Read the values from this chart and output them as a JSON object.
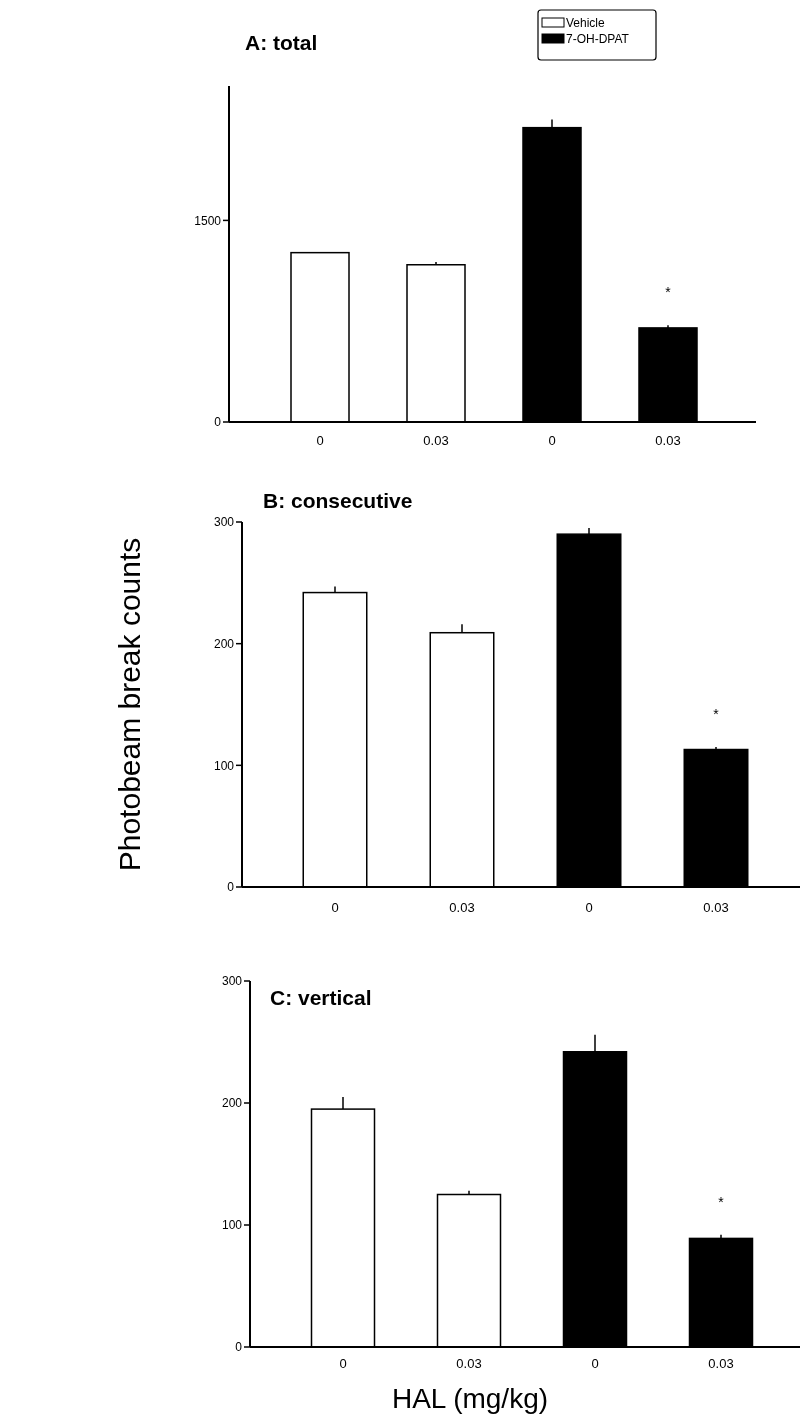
{
  "chart_data": [
    {
      "type": "bar",
      "title": "A: total",
      "categories": [
        "0",
        "0.03",
        "0",
        "0.03"
      ],
      "series": [
        {
          "name": "Vehicle",
          "color": "#ffffff",
          "values": [
            1260,
            1170,
            null,
            null
          ],
          "errors": [
            null,
            20,
            null,
            null
          ]
        },
        {
          "name": "7-OH-DPAT",
          "color": "#000000",
          "values": [
            null,
            null,
            2190,
            700
          ],
          "errors": [
            null,
            null,
            60,
            20
          ]
        }
      ],
      "ylim": [
        0,
        2500
      ],
      "yticks": [
        0,
        1500
      ],
      "legend": "top right",
      "annotations": [
        "*"
      ]
    },
    {
      "type": "bar",
      "title": "B: consecutive",
      "ylabel": "Photobeam break counts",
      "categories": [
        "0",
        "0.03",
        "0",
        "0.03"
      ],
      "series": [
        {
          "color": "#ffffff",
          "values": [
            242,
            209,
            null,
            null
          ],
          "errors": [
            5,
            7,
            null,
            null
          ]
        },
        {
          "color": "#000000",
          "values": [
            null,
            null,
            290,
            113
          ],
          "errors": [
            null,
            null,
            5,
            2
          ]
        }
      ],
      "ylim": [
        0,
        300
      ],
      "yticks": [
        0,
        100,
        200,
        300
      ],
      "annotations": [
        "*"
      ]
    },
    {
      "type": "bar",
      "title": "C: vertical",
      "xlabel": "HAL (mg/kg)",
      "categories": [
        "0",
        "0.03",
        "0",
        "0.03"
      ],
      "series": [
        {
          "color": "#ffffff",
          "values": [
            195,
            125,
            null,
            null
          ],
          "errors": [
            10,
            3,
            null,
            null
          ]
        },
        {
          "color": "#000000",
          "values": [
            null,
            null,
            242,
            89
          ],
          "errors": [
            null,
            null,
            14,
            3
          ]
        }
      ],
      "ylim": [
        0,
        300
      ],
      "yticks": [
        0,
        100,
        200,
        300
      ],
      "annotations": [
        "*"
      ]
    }
  ]
}
